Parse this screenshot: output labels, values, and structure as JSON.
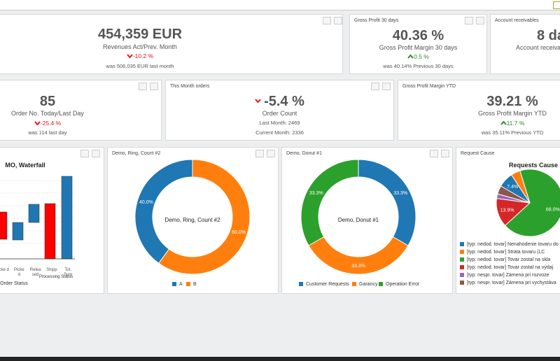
{
  "widgets": [
    {
      "value": "454,359 EUR",
      "label": "Revenues Act/Prev. Month",
      "change": "-10.2 %",
      "note": "was 506,035 EUR last month"
    },
    {
      "header": "Gross Profit 30 days",
      "value": "40.36 %",
      "label": "Gross Profit Margin 30 days",
      "change": "0.5 %",
      "note": "was 40.14% Previous 30 days"
    },
    {
      "header": "Account receivables",
      "value": "8 da",
      "label": "Account receivable"
    },
    {
      "value": "85",
      "label": "Order No. Today/Last Day",
      "change": "-25.4 %",
      "note": "was 114 last day"
    },
    {
      "header": "This Month orders",
      "value": "-5.4 %",
      "label": "Order Count",
      "lines": [
        "Last Month: 2469",
        "Current Month: 2336"
      ]
    },
    {
      "header": "Gross Profit Margin YTD",
      "value": "39.21 %",
      "label": "Gross Profit Margin YTD",
      "change": "11.7 %",
      "note": "was 35.11% Previous YTD"
    }
  ],
  "charts": [
    {
      "type": "waterfall",
      "title": "MO, Waterfall",
      "categories": [
        "acke d",
        "Picke d",
        "Relea sed",
        "Shipp",
        "Tot. Sum"
      ],
      "group_label": "Processing Status",
      "x_label": "Order Status"
    },
    {
      "type": "donut",
      "header": "Demo, Ring, Count #2",
      "center_label": "Demo, Ring, Count #2",
      "categories": [
        "A",
        "B"
      ],
      "values": [
        40,
        60
      ],
      "value_labels": [
        "40.0%",
        "60.0%"
      ],
      "colors": [
        "#1f77b4",
        "#ff7f0e"
      ]
    },
    {
      "type": "donut",
      "header": "Demo, Donut #1",
      "center_label": "Demo, Donut #1",
      "categories": [
        "Customer Requests",
        "Garancy",
        "Operation Error"
      ],
      "values": [
        33.3,
        33.3,
        33.3
      ],
      "value_labels": [
        "33.3%",
        "33.3%",
        "33.3%"
      ],
      "colors": [
        "#1f77b4",
        "#ff7f0e",
        "#2ca02c"
      ]
    },
    {
      "type": "pie",
      "header": "Request Cause",
      "title": "Requests Cause",
      "categories": [
        "[typ: nedod. tovar] Nenahodenie tovaru do o",
        "[typ: nedod. tovar] Strata tovaru (LC",
        "[typ: nedod. tovar] Tovar zostal na skla",
        "[typ: nedod. tovar] Tovar zostal na výdaj",
        "[typ: nespr. tovar] Zámena pri rozvoze",
        "[typ: nespr. tovar] Zámena pri vychystáva"
      ],
      "values": [
        7.4,
        4.5,
        68,
        13.9,
        2.2,
        4
      ],
      "value_labels": [
        "7.4%",
        null,
        "68.0%",
        "13.9%",
        null,
        null
      ],
      "colors": [
        "#1f77b4",
        "#ff7f0e",
        "#2ca02c",
        "#d62728",
        "#9467bd",
        "#8c564b"
      ]
    }
  ]
}
